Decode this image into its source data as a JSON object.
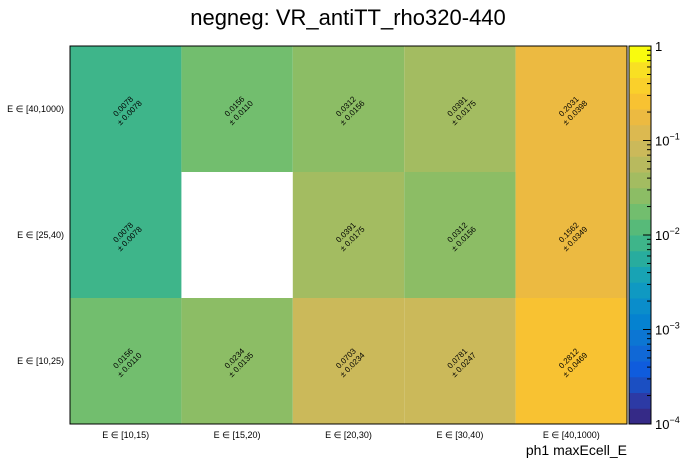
{
  "chart_data": {
    "type": "heatmap",
    "title": "negneg: VR_antiTT_rho320-440",
    "xlabel": "ph1 maxEcell_E",
    "ylabel": "",
    "x_categories": [
      "E ∈ [10,15)",
      "E ∈ [15,20)",
      "E ∈ [20,30)",
      "E ∈ [30,40)",
      "E ∈ [40,1000)"
    ],
    "y_categories": [
      "E ∈ [10,25)",
      "E ∈ [25,40)",
      "E ∈ [40,1000)"
    ],
    "values": [
      [
        0.0156,
        0.0234,
        0.0703,
        0.0781,
        0.2812
      ],
      [
        0.0078,
        null,
        0.0391,
        0.0312,
        0.1562
      ],
      [
        0.0078,
        0.0156,
        0.0312,
        0.0391,
        0.2031
      ]
    ],
    "value_labels": [
      [
        "0.0156",
        "0.0234",
        "0.0703",
        "0.0781",
        "0.2812"
      ],
      [
        "0.0078",
        "",
        "0.0391",
        "0.0312",
        "0.1562"
      ],
      [
        "0.0078",
        "0.0156",
        "0.0312",
        "0.0391",
        "0.2031"
      ]
    ],
    "error_labels": [
      [
        "± 0.0110",
        "± 0.0135",
        "± 0.0234",
        "± 0.0247",
        "± 0.0469"
      ],
      [
        "± 0.0078",
        "",
        "± 0.0175",
        "± 0.0156",
        "± 0.0349"
      ],
      [
        "± 0.0078",
        "± 0.0110",
        "± 0.0156",
        "± 0.0175",
        "± 0.0398"
      ]
    ],
    "colorbar": {
      "scale": "log",
      "range": [
        0.0001,
        1
      ],
      "ticks": [
        {
          "base": "1",
          "exp": ""
        },
        {
          "base": "10",
          "exp": "−1"
        },
        {
          "base": "10",
          "exp": "−2"
        },
        {
          "base": "10",
          "exp": "−3"
        },
        {
          "base": "10",
          "exp": "−4"
        }
      ],
      "palette": [
        "#352a87",
        "#2c3aa5",
        "#1b4fc2",
        "#0f5cdd",
        "#1068d6",
        "#0c76d3",
        "#0582d0",
        "#0a8dcb",
        "#0f99c2",
        "#18a3b4",
        "#28ac9e",
        "#3eb58a",
        "#57ba79",
        "#72be6e",
        "#8cbd65",
        "#a3bc61",
        "#b8ba5e",
        "#cbb95a",
        "#dcb950",
        "#ecba41",
        "#f8c232",
        "#fad02b",
        "#f9e023",
        "#f9fb0e"
      ]
    }
  }
}
